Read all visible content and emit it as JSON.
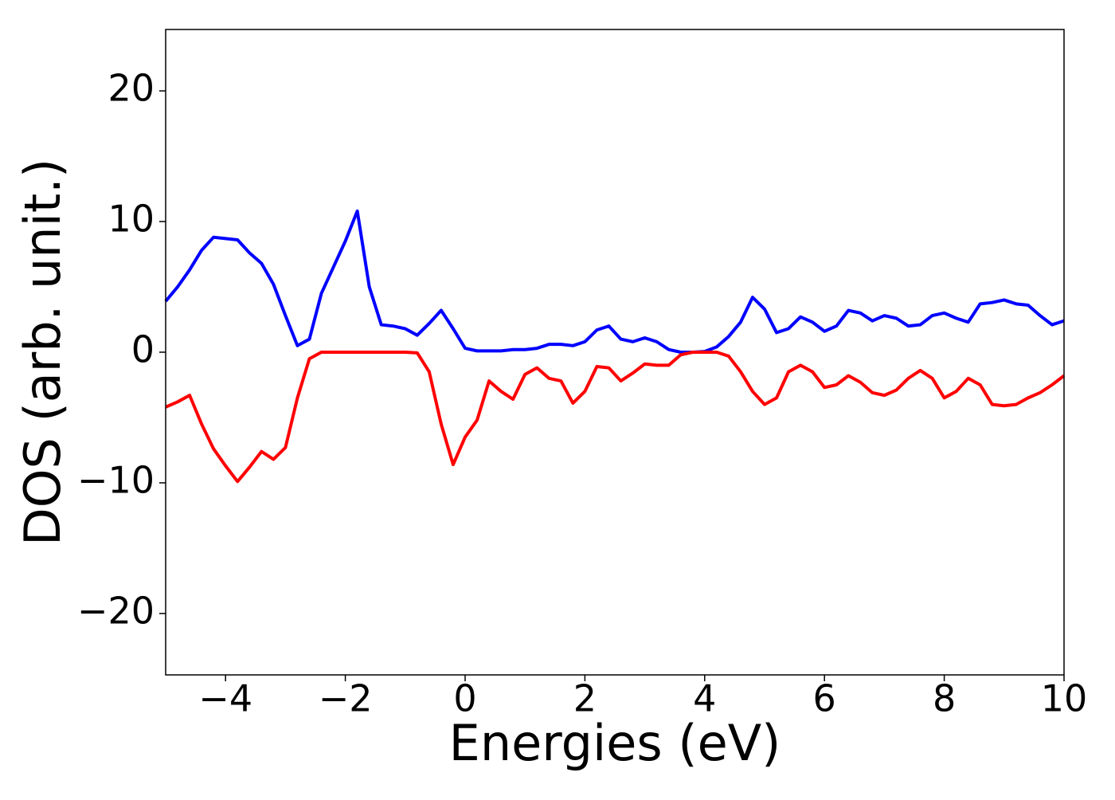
{
  "chart_data": {
    "type": "line",
    "xlabel": "Energies (eV)",
    "ylabel": "DOS (arb. unit.)",
    "x": [
      -5,
      -4.8,
      -4.6,
      -4.4,
      -4.2,
      -4,
      -3.8,
      -3.6,
      -3.4,
      -3.2,
      -3,
      -2.8,
      -2.6,
      -2.4,
      -2.2,
      -2,
      -1.8,
      -1.6,
      -1.4,
      -1.2,
      -1,
      -0.8,
      -0.6,
      -0.4,
      -0.2,
      0,
      0.2,
      0.4,
      0.6,
      0.8,
      1,
      1.2,
      1.4,
      1.6,
      1.8,
      2,
      2.2,
      2.4,
      2.6,
      2.8,
      3,
      3.2,
      3.4,
      3.6,
      3.8,
      4,
      4.2,
      4.4,
      4.6,
      4.8,
      5,
      5.2,
      5.4,
      5.6,
      5.8,
      6,
      6.2,
      6.4,
      6.6,
      6.8,
      7,
      7.2,
      7.4,
      7.6,
      7.8,
      8,
      8.2,
      8.4,
      8.6,
      8.8,
      9,
      9.2,
      9.4,
      9.6,
      9.8,
      10
    ],
    "series": [
      {
        "color": "#0000ff",
        "values": [
          3.9,
          5.0,
          6.3,
          7.8,
          8.8,
          8.7,
          8.6,
          7.6,
          6.8,
          5.2,
          2.8,
          0.5,
          1.0,
          4.5,
          6.5,
          8.5,
          10.8,
          5.0,
          2.1,
          2.0,
          1.8,
          1.3,
          2.2,
          3.2,
          1.8,
          0.3,
          0.1,
          0.1,
          0.1,
          0.2,
          0.2,
          0.3,
          0.6,
          0.6,
          0.5,
          0.8,
          1.7,
          2.0,
          1.0,
          0.8,
          1.1,
          0.8,
          0.2,
          0.0,
          0.0,
          0.05,
          0.4,
          1.2,
          2.3,
          4.2,
          3.3,
          1.5,
          1.8,
          2.7,
          2.3,
          1.6,
          2.0,
          3.2,
          3.0,
          2.4,
          2.8,
          2.6,
          2.0,
          2.1,
          2.8,
          3.0,
          2.6,
          2.3,
          3.7,
          3.8,
          4.0,
          3.7,
          3.6,
          2.8,
          2.1,
          2.4
        ]
      },
      {
        "color": "#ff0000",
        "values": [
          -4.2,
          -3.8,
          -3.3,
          -5.5,
          -7.4,
          -8.7,
          -9.9,
          -8.8,
          -7.6,
          -8.2,
          -7.3,
          -3.5,
          -0.5,
          0,
          0,
          0,
          0,
          0,
          0,
          0,
          0,
          -0.05,
          -1.5,
          -5.5,
          -8.6,
          -6.5,
          -5.2,
          -2.2,
          -3.0,
          -3.6,
          -1.7,
          -1.2,
          -2.0,
          -2.2,
          -3.9,
          -3.0,
          -1.1,
          -1.2,
          -2.2,
          -1.6,
          -0.9,
          -1.0,
          -1.0,
          -0.2,
          0,
          0,
          0,
          -0.3,
          -1.5,
          -3.0,
          -4.0,
          -3.5,
          -1.5,
          -1.0,
          -1.5,
          -2.7,
          -2.5,
          -1.8,
          -2.3,
          -3.1,
          -3.3,
          -2.9,
          -2.0,
          -1.4,
          -2.0,
          -3.5,
          -3.0,
          -2.0,
          -2.5,
          -4.0,
          -4.1,
          -4.0,
          -3.5,
          -3.1,
          -2.5,
          -1.8
        ]
      }
    ],
    "xlim": [
      -5,
      10
    ],
    "xticks": [
      {
        "value": -4,
        "label": "−4"
      },
      {
        "value": -2,
        "label": "−2"
      },
      0,
      2,
      4,
      6,
      8,
      10
    ],
    "ylim": [
      -24.7,
      24.7
    ],
    "yticks": [
      {
        "value": -20,
        "label": "−20"
      },
      {
        "value": -10,
        "label": "−10"
      },
      0,
      10,
      20
    ]
  }
}
